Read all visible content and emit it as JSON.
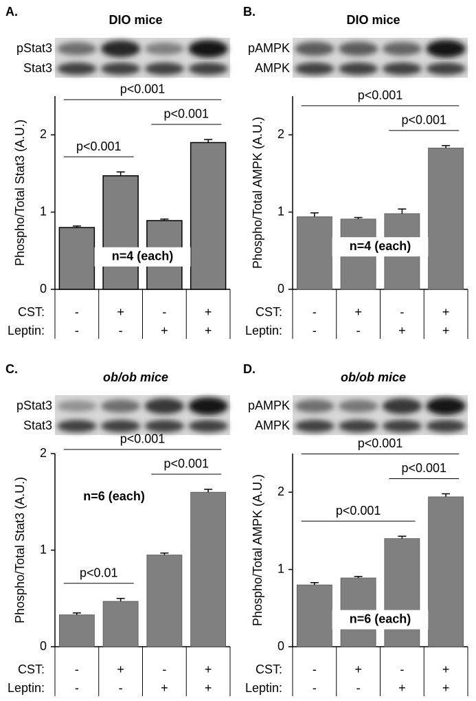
{
  "chart_data": [
    {
      "type": "bar",
      "panel": "A.",
      "title": "DIO mice",
      "blots": [
        "pStat3",
        "Stat3"
      ],
      "ylabel": "Phospho/Total Stat3 (A.U.)",
      "ylim": [
        0,
        2.5
      ],
      "yticks": [
        0,
        1,
        2
      ],
      "values": [
        0.8,
        1.47,
        0.89,
        1.9
      ],
      "errors": [
        0.02,
        0.05,
        0.02,
        0.04
      ],
      "color": "#808080",
      "outline": true,
      "conditions": [
        {
          "name": "CST:",
          "marks": [
            "-",
            "+",
            "-",
            "+"
          ]
        },
        {
          "name": "Leptin:",
          "marks": [
            "-",
            "-",
            "+",
            "+"
          ]
        }
      ],
      "brackets": [
        {
          "label": "p<0.001",
          "from": 0,
          "to": 1
        },
        {
          "label": "p<0.001",
          "from": 2,
          "to": 3
        },
        {
          "label": "p<0.001",
          "from": 0,
          "to": 3
        }
      ],
      "note": "n=4 (each)"
    },
    {
      "type": "bar",
      "panel": "B.",
      "title": "DIO mice",
      "blots": [
        "pAMPK",
        "AMPK"
      ],
      "ylabel": "Phospho/Total AMPK (A.U.)",
      "ylim": [
        0,
        2.5
      ],
      "yticks": [
        0,
        1,
        2
      ],
      "values": [
        0.94,
        0.91,
        0.98,
        1.83
      ],
      "errors": [
        0.05,
        0.02,
        0.06,
        0.03
      ],
      "color": "#808080",
      "outline": false,
      "conditions": [
        {
          "name": "CST:",
          "marks": [
            "-",
            "+",
            "-",
            "+"
          ]
        },
        {
          "name": "Leptin:",
          "marks": [
            "-",
            "-",
            "+",
            "+"
          ]
        }
      ],
      "brackets": [
        {
          "label": "p<0.001",
          "from": 2,
          "to": 3
        },
        {
          "label": "p<0.001",
          "from": 0,
          "to": 3
        }
      ],
      "note": "n=4 (each)"
    },
    {
      "type": "bar",
      "panel": "C.",
      "title": "ob/ob mice",
      "blots": [
        "pStat3",
        "Stat3"
      ],
      "ylabel": "Phospho/Total Stat3 (A.U.)",
      "ylim": [
        0,
        2
      ],
      "yticks": [
        0,
        1,
        2
      ],
      "values": [
        0.33,
        0.47,
        0.95,
        1.6
      ],
      "errors": [
        0.02,
        0.03,
        0.02,
        0.03
      ],
      "color": "#808080",
      "outline": false,
      "conditions": [
        {
          "name": "CST:",
          "marks": [
            "-",
            "+",
            "-",
            "+"
          ]
        },
        {
          "name": "Leptin:",
          "marks": [
            "-",
            "-",
            "+",
            "+"
          ]
        }
      ],
      "brackets": [
        {
          "label": "p<0.01",
          "from": 0,
          "to": 1
        },
        {
          "label": "p<0.001",
          "from": 2,
          "to": 3
        },
        {
          "label": "p<0.001",
          "from": 0,
          "to": 3
        }
      ],
      "note": "n=6 (each)"
    },
    {
      "type": "bar",
      "panel": "D.",
      "title": "ob/ob mice",
      "blots": [
        "pAMPK",
        "AMPK"
      ],
      "ylabel": "Phospho/Total AMPK (A.U.)",
      "ylim": [
        0,
        2.5
      ],
      "yticks": [
        0,
        1,
        2
      ],
      "values": [
        0.8,
        0.89,
        1.4,
        1.94
      ],
      "errors": [
        0.03,
        0.02,
        0.03,
        0.04
      ],
      "color": "#808080",
      "outline": false,
      "conditions": [
        {
          "name": "CST:",
          "marks": [
            "-",
            "+",
            "-",
            "+"
          ]
        },
        {
          "name": "Leptin:",
          "marks": [
            "-",
            "-",
            "+",
            "+"
          ]
        }
      ],
      "brackets": [
        {
          "label": "p<0.001",
          "from": 0,
          "to": 2
        },
        {
          "label": "p<0.001",
          "from": 2,
          "to": 3
        },
        {
          "label": "p<0.001",
          "from": 0,
          "to": 3
        }
      ],
      "note": "n=6 (each)"
    }
  ]
}
